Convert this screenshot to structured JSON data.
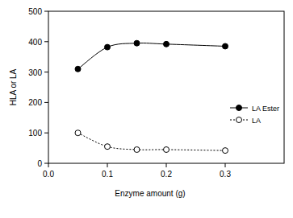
{
  "chart_data": {
    "type": "line",
    "x_label": "Enzyme amount (g)",
    "y_label": "HLA or LA",
    "xlim": [
      0,
      0.4
    ],
    "xticks": [
      {
        "value": 0,
        "label": "0.0"
      },
      0.1,
      0.2,
      0.3
    ],
    "ylim": [
      0,
      500
    ],
    "yticks": [
      0,
      100,
      200,
      300,
      400,
      500
    ],
    "grid": false,
    "legend": "right",
    "series": [
      {
        "name": "LA Ester",
        "color": "#000000",
        "marker": "filled-circle",
        "line_style": "solid",
        "x": [
          0.05,
          0.1,
          0.15,
          0.2,
          0.3
        ],
        "values": [
          310,
          382,
          395,
          392,
          385
        ]
      },
      {
        "name": "LA",
        "color": "#000000",
        "marker": "open-circle",
        "line_style": "dotted",
        "x": [
          0.05,
          0.1,
          0.15,
          0.2,
          0.3
        ],
        "values": [
          100,
          55,
          45,
          45,
          42
        ]
      }
    ]
  }
}
